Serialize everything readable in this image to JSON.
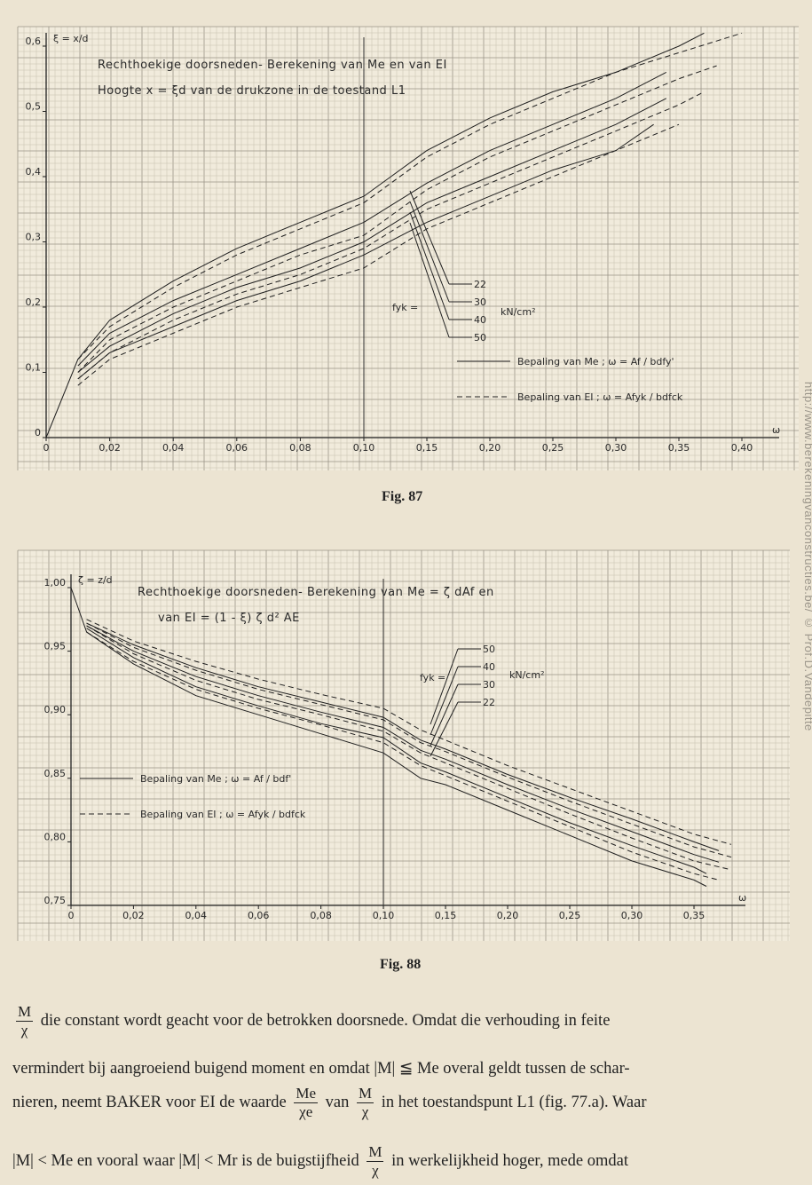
{
  "figures": [
    {
      "caption": "Fig. 87",
      "ylabel_formula": "ξ = x/d",
      "title_line1": "Rechthoekige doorsneden- Berekening van Me en van EI",
      "title_line2": "Hoogte x = ξd van de drukzone in de toestand L1",
      "xlabel": "ω",
      "x_ticks": [
        "0",
        "0,02",
        "0,04",
        "0,06",
        "0,08",
        "0,10",
        "0,15",
        "0,20",
        "0,25",
        "0,30",
        "0,35",
        "0,40"
      ],
      "y_ticks": [
        "0",
        "0,1",
        "0,2",
        "0,3",
        "0,4",
        "0,5",
        "0,6"
      ],
      "fyk_label": "fyk =",
      "fyk_values": [
        "22",
        "30",
        "40",
        "50"
      ],
      "fyk_unit": "kN/cm²",
      "legend_solid": "Bepaling van Me ; ω = Af / bdfy'",
      "legend_dashed": "Bepaling van EI ; ω = Afyk / bdfck"
    },
    {
      "caption": "Fig. 88",
      "ylabel_formula": "ζ = z/d",
      "title_line1": "Rechthoekige doorsneden- Berekening van Me = ζ dAf en",
      "title_line2": "van EI = (1 - ξ) ζ d² AE",
      "xlabel": "ω",
      "x_ticks": [
        "0",
        "0,02",
        "0,04",
        "0,06",
        "0,08",
        "0,10",
        "0,15",
        "0,20",
        "0,25",
        "0,30",
        "0,35"
      ],
      "y_ticks": [
        "0,75",
        "0,80",
        "0,85",
        "0,90",
        "0,95",
        "1,00"
      ],
      "fyk_label": "fyk =",
      "fyk_values": [
        "50",
        "40",
        "30",
        "22"
      ],
      "fyk_unit": "kN/cm²",
      "legend_solid": "Bepaling van Me ; ω = Af / bdf'",
      "legend_dashed": "Bepaling van EI ; ω = Afyk / bdfck"
    }
  ],
  "chart_data": [
    {
      "type": "line",
      "title": "Rechthoekige doorsneden- Berekening van Me en van EI — Hoogte x = ξd van de drukzone in de toestand L1",
      "xlabel": "ω",
      "ylabel": "ξ = x/d",
      "x_scale": "piecewise: 0–0,10 step 0,02; 0,10–0,40 step 0,05",
      "xlim": [
        0,
        0.4
      ],
      "ylim": [
        0,
        0.6
      ],
      "grid": true,
      "series": [
        {
          "name": "Me, fyk = 22",
          "style": "solid",
          "x": [
            0,
            0.01,
            0.02,
            0.04,
            0.06,
            0.08,
            0.1,
            0.15,
            0.2,
            0.25,
            0.3,
            0.35,
            0.37
          ],
          "y": [
            0,
            0.12,
            0.18,
            0.24,
            0.29,
            0.33,
            0.37,
            0.44,
            0.49,
            0.53,
            0.56,
            0.6,
            0.62
          ]
        },
        {
          "name": "Me, fyk = 30",
          "style": "solid",
          "x": [
            0.01,
            0.02,
            0.04,
            0.06,
            0.08,
            0.1,
            0.15,
            0.2,
            0.25,
            0.3,
            0.34
          ],
          "y": [
            0.11,
            0.16,
            0.21,
            0.25,
            0.29,
            0.33,
            0.39,
            0.44,
            0.48,
            0.52,
            0.56
          ]
        },
        {
          "name": "Me, fyk = 40",
          "style": "solid",
          "x": [
            0.01,
            0.02,
            0.04,
            0.06,
            0.08,
            0.1,
            0.15,
            0.2,
            0.25,
            0.3,
            0.34
          ],
          "y": [
            0.1,
            0.14,
            0.19,
            0.23,
            0.26,
            0.3,
            0.36,
            0.4,
            0.44,
            0.48,
            0.52
          ]
        },
        {
          "name": "Me, fyk = 50",
          "style": "solid",
          "x": [
            0.01,
            0.02,
            0.04,
            0.06,
            0.08,
            0.1,
            0.15,
            0.2,
            0.25,
            0.3,
            0.33
          ],
          "y": [
            0.09,
            0.13,
            0.17,
            0.21,
            0.24,
            0.28,
            0.33,
            0.37,
            0.41,
            0.44,
            0.48
          ]
        },
        {
          "name": "EI, fyk = 22",
          "style": "dashed",
          "x": [
            0.01,
            0.02,
            0.04,
            0.06,
            0.08,
            0.1,
            0.15,
            0.2,
            0.25,
            0.3,
            0.35,
            0.4
          ],
          "y": [
            0.12,
            0.17,
            0.23,
            0.28,
            0.32,
            0.36,
            0.43,
            0.48,
            0.52,
            0.56,
            0.59,
            0.62
          ]
        },
        {
          "name": "EI, fyk = 30",
          "style": "dashed",
          "x": [
            0.01,
            0.02,
            0.04,
            0.06,
            0.08,
            0.1,
            0.15,
            0.2,
            0.25,
            0.3,
            0.35,
            0.38
          ],
          "y": [
            0.1,
            0.15,
            0.2,
            0.24,
            0.28,
            0.31,
            0.38,
            0.43,
            0.47,
            0.51,
            0.55,
            0.57
          ]
        },
        {
          "name": "EI, fyk = 40",
          "style": "dashed",
          "x": [
            0.01,
            0.02,
            0.04,
            0.06,
            0.08,
            0.1,
            0.15,
            0.2,
            0.25,
            0.3,
            0.35,
            0.37
          ],
          "y": [
            0.09,
            0.13,
            0.18,
            0.22,
            0.25,
            0.29,
            0.35,
            0.39,
            0.43,
            0.47,
            0.51,
            0.53
          ]
        },
        {
          "name": "EI, fyk = 50",
          "style": "dashed",
          "x": [
            0.01,
            0.02,
            0.04,
            0.06,
            0.08,
            0.1,
            0.15,
            0.2,
            0.25,
            0.3,
            0.35
          ],
          "y": [
            0.08,
            0.12,
            0.16,
            0.2,
            0.23,
            0.26,
            0.32,
            0.36,
            0.4,
            0.44,
            0.48
          ]
        }
      ]
    },
    {
      "type": "line",
      "title": "Rechthoekige doorsneden- Berekening van Me = ζ dAf en van EI = (1 - ξ) ζ d² AE",
      "xlabel": "ω",
      "ylabel": "ζ = z/d",
      "x_scale": "piecewise: 0–0,10 step 0,02; 0,10–0,35 step 0,05",
      "xlim": [
        0,
        0.38
      ],
      "ylim": [
        0.75,
        1.0
      ],
      "grid": true,
      "series": [
        {
          "name": "Me, fyk = 22",
          "style": "solid",
          "x": [
            0,
            0.005,
            0.02,
            0.04,
            0.06,
            0.08,
            0.1,
            0.13,
            0.15,
            0.2,
            0.25,
            0.3,
            0.35,
            0.36
          ],
          "y": [
            1.0,
            0.965,
            0.94,
            0.915,
            0.9,
            0.885,
            0.87,
            0.85,
            0.845,
            0.825,
            0.805,
            0.785,
            0.77,
            0.765
          ]
        },
        {
          "name": "Me, fyk = 30",
          "style": "solid",
          "x": [
            0.005,
            0.02,
            0.04,
            0.06,
            0.08,
            0.1,
            0.13,
            0.15,
            0.2,
            0.25,
            0.3,
            0.35,
            0.36
          ],
          "y": [
            0.968,
            0.945,
            0.922,
            0.907,
            0.893,
            0.882,
            0.862,
            0.855,
            0.835,
            0.815,
            0.797,
            0.78,
            0.775
          ]
        },
        {
          "name": "Me, fyk = 40",
          "style": "solid",
          "x": [
            0.005,
            0.02,
            0.04,
            0.06,
            0.08,
            0.1,
            0.13,
            0.15,
            0.2,
            0.25,
            0.3,
            0.35,
            0.37
          ],
          "y": [
            0.97,
            0.95,
            0.93,
            0.915,
            0.902,
            0.89,
            0.872,
            0.865,
            0.845,
            0.826,
            0.808,
            0.79,
            0.784
          ]
        },
        {
          "name": "Me, fyk = 50",
          "style": "solid",
          "x": [
            0.005,
            0.02,
            0.04,
            0.06,
            0.08,
            0.1,
            0.13,
            0.15,
            0.2,
            0.25,
            0.3,
            0.35,
            0.37
          ],
          "y": [
            0.972,
            0.955,
            0.937,
            0.922,
            0.91,
            0.898,
            0.88,
            0.873,
            0.853,
            0.835,
            0.818,
            0.8,
            0.793
          ]
        },
        {
          "name": "EI, fyk = 22",
          "style": "dashed",
          "x": [
            0.005,
            0.02,
            0.04,
            0.06,
            0.08,
            0.1,
            0.13,
            0.15,
            0.2,
            0.25,
            0.3,
            0.35,
            0.37
          ],
          "y": [
            0.965,
            0.942,
            0.92,
            0.905,
            0.892,
            0.878,
            0.86,
            0.852,
            0.832,
            0.812,
            0.792,
            0.775,
            0.77
          ]
        },
        {
          "name": "EI, fyk = 30",
          "style": "dashed",
          "x": [
            0.005,
            0.02,
            0.04,
            0.06,
            0.08,
            0.1,
            0.13,
            0.15,
            0.2,
            0.25,
            0.3,
            0.35,
            0.38
          ],
          "y": [
            0.97,
            0.948,
            0.927,
            0.912,
            0.9,
            0.887,
            0.87,
            0.862,
            0.842,
            0.822,
            0.803,
            0.785,
            0.778
          ]
        },
        {
          "name": "EI, fyk = 40",
          "style": "dashed",
          "x": [
            0.005,
            0.02,
            0.04,
            0.06,
            0.08,
            0.1,
            0.13,
            0.15,
            0.2,
            0.25,
            0.3,
            0.35,
            0.38
          ],
          "y": [
            0.972,
            0.953,
            0.935,
            0.92,
            0.908,
            0.896,
            0.878,
            0.871,
            0.851,
            0.832,
            0.814,
            0.796,
            0.788
          ]
        },
        {
          "name": "EI, fyk = 50",
          "style": "dashed",
          "x": [
            0.005,
            0.02,
            0.04,
            0.06,
            0.08,
            0.1,
            0.13,
            0.15,
            0.2,
            0.25,
            0.3,
            0.35,
            0.38
          ],
          "y": [
            0.975,
            0.958,
            0.942,
            0.928,
            0.916,
            0.905,
            0.888,
            0.88,
            0.86,
            0.842,
            0.824,
            0.806,
            0.798
          ]
        }
      ]
    }
  ],
  "body": {
    "line1_a": "M",
    "line1_b": "χ",
    "line1_c": "die constant wordt geacht voor de betrokken doorsnede. Omdat die verhouding in feite",
    "line2": "vermindert bij aangroeiend buigend moment en omdat |M| ≦ Me overal geldt tussen de schar-",
    "line3_a": "nieren, neemt BAKER voor EI de waarde",
    "line3_f1n": "Me",
    "line3_f1d": "χe",
    "line3_b": "van",
    "line3_f2n": "M",
    "line3_f2d": "χ",
    "line3_c": "in het toestandspunt L1 (fig. 77.a). Waar",
    "line4_a": "|M| < Me en vooral waar |M| < Mr is de buigstijfheid",
    "line4_fn": "M",
    "line4_fd": "χ",
    "line4_b": "in werkelijkheid hoger, mede omdat"
  },
  "watermark": "http://www.berekeningvanconstructies.be/   © Prof.D.Vandepitte"
}
